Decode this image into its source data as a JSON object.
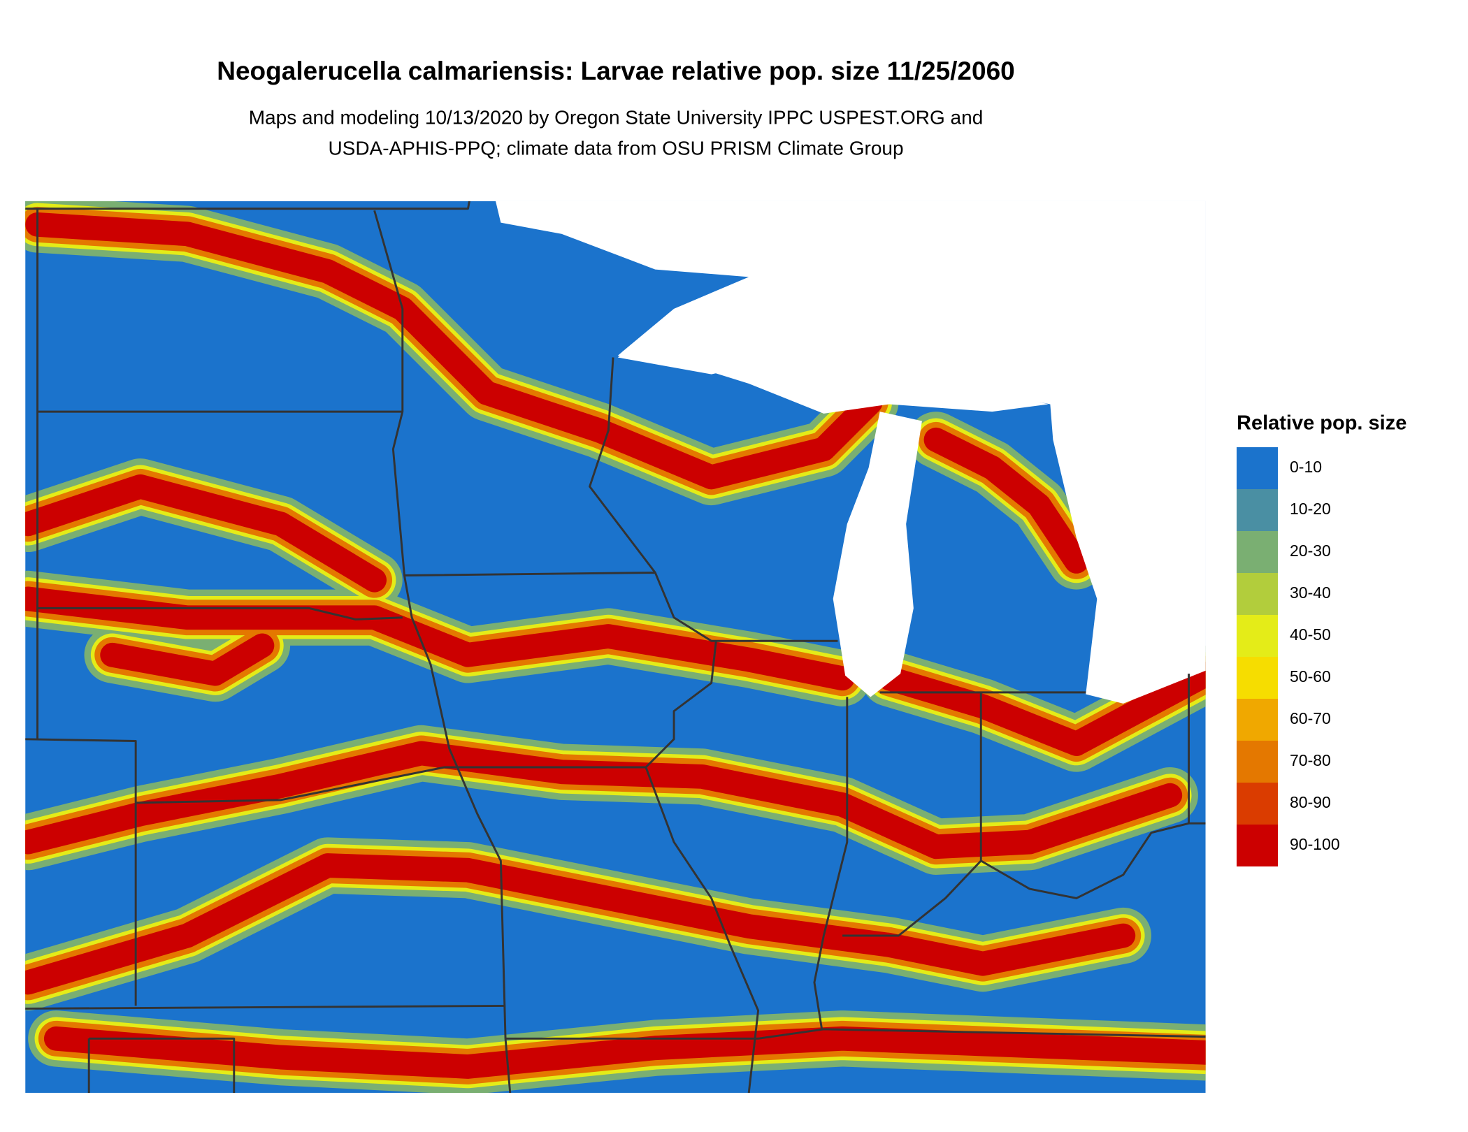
{
  "title": "Neogalerucella calmariensis: Larvae relative pop. size 11/25/2060",
  "subtitle": [
    "Maps and modeling 10/13/2020 by Oregon State University IPPC USPEST.ORG and",
    "USDA-APHIS-PPQ; climate data from OSU PRISM Climate Group"
  ],
  "legend": {
    "title": "Relative pop. size",
    "items": [
      {
        "label": "0-10",
        "color": "#1b73cc"
      },
      {
        "label": "10-20",
        "color": "#4a8fa3"
      },
      {
        "label": "20-30",
        "color": "#7aaf72"
      },
      {
        "label": "30-40",
        "color": "#b2cd3c"
      },
      {
        "label": "40-50",
        "color": "#e4ec18"
      },
      {
        "label": "50-60",
        "color": "#f6dd00"
      },
      {
        "label": "60-70",
        "color": "#f0a800"
      },
      {
        "label": "70-80",
        "color": "#e47800"
      },
      {
        "label": "80-90",
        "color": "#da3c00"
      },
      {
        "label": "90-100",
        "color": "#cc0000"
      }
    ]
  }
}
